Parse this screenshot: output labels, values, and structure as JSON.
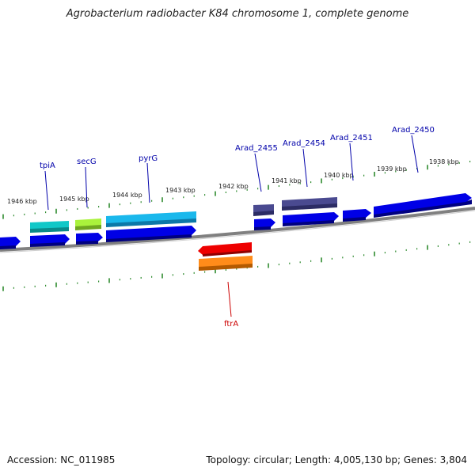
{
  "title": "Agrobacterium radiobacter K84 chromosome 1, complete genome",
  "footer": {
    "accession": "Accession: NC_011985",
    "summary": "Topology: circular; Length: 4,005,130 bp; Genes: 3,804"
  },
  "colors": {
    "backbone": "#808080",
    "tick": "#2e8b2e",
    "cds": "#0000e6",
    "label_default": "#0000aa",
    "label_highlight": "#cc0000"
  },
  "ticks": [
    "1946 kbp",
    "1945 kbp",
    "1944 kbp",
    "1943 kbp",
    "1942 kbp",
    "1941 kbp",
    "1940 kbp",
    "1939 kbp",
    "1938 kbp"
  ],
  "gene_labels": [
    {
      "name": "tpiA",
      "color": "#0000aa"
    },
    {
      "name": "secG",
      "color": "#0000aa"
    },
    {
      "name": "pyrG",
      "color": "#0000aa"
    },
    {
      "name": "Arad_2455",
      "color": "#0000aa"
    },
    {
      "name": "Arad_2454",
      "color": "#0000aa"
    },
    {
      "name": "Arad_2451",
      "color": "#0000aa"
    },
    {
      "name": "Arad_2450",
      "color": "#0000aa"
    },
    {
      "name": "ftrA",
      "color": "#cc0000"
    }
  ]
}
